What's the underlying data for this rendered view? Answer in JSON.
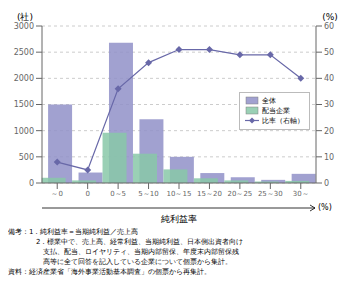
{
  "chart_data": {
    "type": "bar",
    "categories": [
      "～0",
      "0",
      "0～5",
      "5～10",
      "10～15",
      "15～20",
      "20～25",
      "25～30",
      "30～"
    ],
    "series": [
      {
        "name": "全体",
        "type": "bar",
        "color": "#9090c8",
        "values": [
          1500,
          200,
          2680,
          1220,
          500,
          190,
          110,
          60,
          175
        ]
      },
      {
        "name": "配当企業",
        "type": "bar",
        "color": "#88c8a8",
        "values": [
          100,
          50,
          960,
          560,
          260,
          90,
          50,
          30,
          40
        ]
      },
      {
        "name": "比率（右軸）",
        "type": "line",
        "axis": "y2",
        "color": "#6868a8",
        "marker": "diamond",
        "values": [
          8,
          5,
          36,
          46,
          51,
          51,
          49,
          49,
          40
        ]
      }
    ],
    "ylim": [
      0,
      3000
    ],
    "yticks": [
      0,
      500,
      1000,
      1500,
      2000,
      2500,
      3000
    ],
    "y2lim": [
      0,
      60
    ],
    "y2ticks": [
      0,
      10,
      20,
      30,
      40,
      50,
      60
    ],
    "ylabel": "(社)",
    "y2label": "(%)",
    "xlabel": "純利益率",
    "xlabel_unit": "(%)",
    "notes": [
      "備考：1．純利益率＝当期純利益／売上高",
      "　　　　2．標業中で、売上高、経常利益、当期純利益、日本側出資者向け",
      "　　　　　支払、配当、ロイヤリティ、当期内部留保、年度末内部留保残",
      "　　　　　高等に全て回答を記入している企業について個票から集計。"
    ],
    "source": "資料：経済産業省「海外事業活動基本調査」の個票から再集計。",
    "grid": true,
    "legend": "center right"
  }
}
